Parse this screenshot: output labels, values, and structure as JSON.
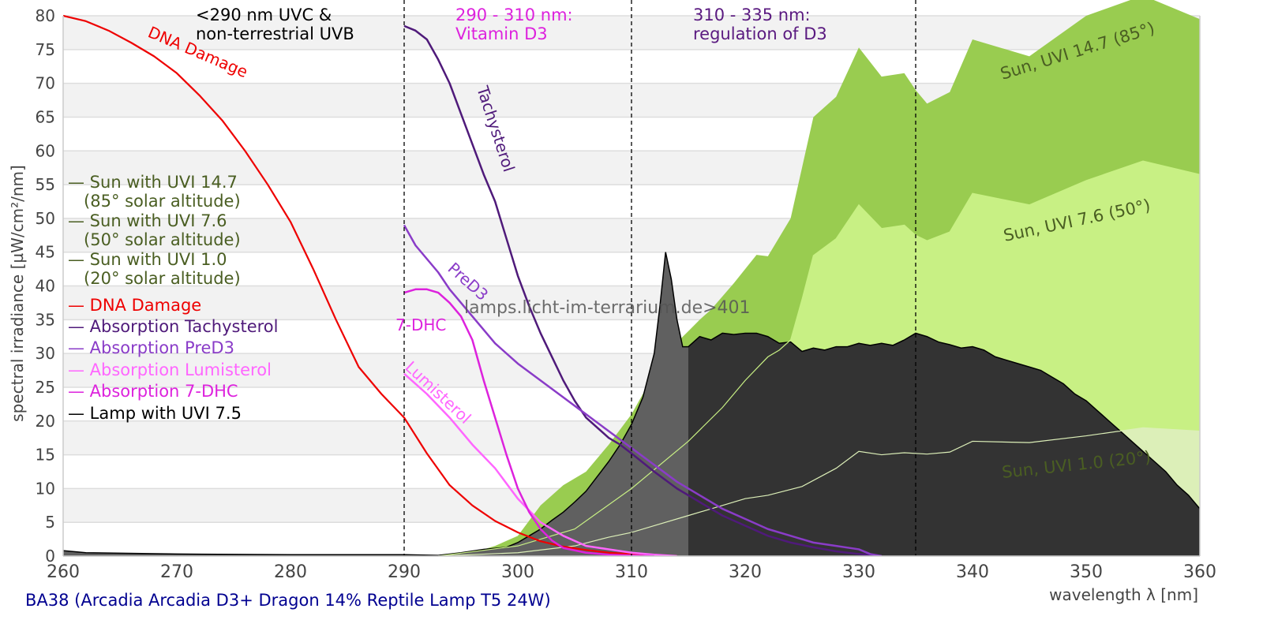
{
  "chart_data": {
    "type": "area",
    "title": "",
    "footer": "BA38 (Arcadia Arcadia D3+ Dragon 14% Reptile Lamp T5 24W)",
    "watermark": "lamps.licht-im-terrarium.de>401",
    "xlabel": "wavelength λ [nm]",
    "ylabel": "spectral irradiance [µW/cm²/nm]",
    "xlim": [
      260,
      360
    ],
    "ylim": [
      0,
      80
    ],
    "xticks": [
      260,
      270,
      280,
      290,
      300,
      310,
      320,
      330,
      340,
      350,
      360
    ],
    "yticks": [
      0,
      5,
      10,
      15,
      20,
      25,
      30,
      35,
      40,
      45,
      50,
      55,
      60,
      65,
      70,
      75,
      80
    ],
    "grid": "horizontal bands",
    "legend_position": "left-middle",
    "vlines": [
      290,
      310,
      335
    ],
    "region_annotations": [
      {
        "lines": [
          "<290 nm UVC &",
          "non-terrestrial UVB"
        ],
        "color": "#000000"
      },
      {
        "lines": [
          "290 - 310 nm:",
          "Vitamin D3"
        ],
        "color": "#dd22dd"
      },
      {
        "lines": [
          "310 - 335 nm:",
          "regulation of D3"
        ],
        "color": "#5a1a80"
      }
    ],
    "legend": [
      {
        "lines": [
          "— Sun with UVI 14.7",
          "   (85° solar altitude)"
        ],
        "color": "#4a5e22"
      },
      {
        "lines": [
          "— Sun with UVI 7.6",
          "   (50° solar altitude)"
        ],
        "color": "#4a5e22"
      },
      {
        "lines": [
          "— Sun with UVI 1.0",
          "   (20° solar altitude)"
        ],
        "color": "#4a5e22"
      },
      {
        "lines": [
          "— DNA Damage"
        ],
        "color": "#ee0000"
      },
      {
        "lines": [
          "— Absorption Tachysterol"
        ],
        "color": "#4f1a7a"
      },
      {
        "lines": [
          "— Absorption PreD3"
        ],
        "color": "#8a3cc8"
      },
      {
        "lines": [
          "— Absorption Lumisterol"
        ],
        "color": "#ff66ff"
      },
      {
        "lines": [
          "— Absorption 7-DHC"
        ],
        "color": "#dd22dd"
      },
      {
        "lines": [
          "— Lamp with UVI 7.5"
        ],
        "color": "#000000"
      }
    ],
    "series": [
      {
        "name": "Sun with UVI 14.7 (85° solar altitude)",
        "label": "Sun, UVI 14.7 (85°)",
        "kind": "area",
        "color": "#99cc50",
        "x": [
          293,
          296,
          298,
          300,
          302,
          304,
          306,
          308,
          310,
          312,
          313,
          315,
          316,
          317,
          319,
          321,
          322,
          324,
          326,
          328,
          330,
          332,
          334,
          335,
          336,
          338,
          340,
          345,
          350,
          355,
          360
        ],
        "y": [
          0,
          0.5,
          1.5,
          3,
          7.5,
          10.5,
          12.5,
          16.5,
          21,
          27,
          30,
          33.3,
          35,
          36.5,
          40.4,
          44.6,
          44.4,
          50,
          65,
          68,
          75.3,
          71,
          71.5,
          69,
          67,
          68.7,
          76.5,
          74,
          80,
          83,
          79.5
        ]
      },
      {
        "name": "Sun with UVI 7.6 (50° solar altitude)",
        "label": "Sun, UVI 7.6 (50°)",
        "kind": "area",
        "color": "#c8f084",
        "x": [
          293,
          300,
          305,
          310,
          315,
          318,
          320,
          322,
          323,
          324,
          325,
          326,
          328,
          330,
          332,
          334,
          335,
          336,
          338,
          340,
          345,
          350,
          355,
          360
        ],
        "y": [
          0,
          1.5,
          4,
          10,
          17,
          22,
          26,
          29.5,
          30.5,
          32,
          38,
          44.5,
          47,
          52,
          48.5,
          49,
          47.5,
          46.7,
          48,
          53.7,
          52,
          55.6,
          58.5,
          56.5
        ]
      },
      {
        "name": "Sun with UVI 1.0 (20° solar altitude)",
        "label": "Sun, UVI 1.0 (20°)",
        "kind": "area",
        "color": "#dcefb8",
        "x": [
          293,
          300,
          305,
          308,
          310,
          312,
          315,
          318,
          320,
          322,
          325,
          328,
          330,
          332,
          334,
          336,
          338,
          340,
          345,
          350,
          355,
          360
        ],
        "y": [
          0,
          0.5,
          1.5,
          2.8,
          3.5,
          4.5,
          6,
          7.5,
          8.5,
          9,
          10.3,
          13,
          15.5,
          15,
          15.3,
          15.1,
          15.4,
          17,
          16.8,
          17.8,
          19,
          18.5
        ]
      },
      {
        "name": "Lamp with UVI 7.5",
        "kind": "area",
        "color": "#333333",
        "color_uvb": "#606060",
        "x": [
          260,
          262,
          270,
          280,
          290,
          293,
          295,
          297,
          299,
          300,
          301,
          302,
          303,
          304,
          305,
          306,
          307,
          308,
          309,
          310,
          311,
          312,
          312.5,
          313,
          313.5,
          314,
          314.5,
          315,
          316,
          317,
          318,
          319,
          320,
          321,
          322,
          323,
          324,
          325,
          326,
          327,
          328,
          329,
          330,
          331,
          332,
          333,
          334,
          335,
          336,
          337,
          338,
          339,
          340,
          341,
          342,
          343,
          344,
          345,
          346,
          347,
          348,
          349,
          350,
          351,
          352,
          353,
          354,
          355,
          356,
          357,
          358,
          359,
          360
        ],
        "y": [
          0.8,
          0.5,
          0.3,
          0.2,
          0.2,
          0.1,
          0.5,
          1,
          1.3,
          2,
          3,
          4,
          5.3,
          6.5,
          8,
          9.6,
          11.8,
          14,
          16.5,
          19.5,
          23.5,
          30,
          37,
          45,
          41,
          35,
          31,
          31,
          32.5,
          32,
          33,
          32.8,
          33,
          33,
          32.5,
          31.5,
          31.7,
          30.3,
          30.8,
          30.5,
          31,
          31,
          31.5,
          31.2,
          31.5,
          31.2,
          32,
          33,
          32.5,
          31.7,
          31.3,
          30.8,
          31,
          30.5,
          29.5,
          29,
          28.5,
          28,
          27.5,
          26.5,
          25.5,
          24,
          23,
          21.5,
          20,
          18.5,
          17,
          15.5,
          14,
          12.5,
          10.5,
          9,
          7
        ]
      },
      {
        "name": "DNA Damage",
        "label": "DNA Damage",
        "kind": "line",
        "color": "#ee0000",
        "x": [
          260,
          262,
          264,
          266,
          268,
          270,
          272,
          274,
          276,
          278,
          280,
          282,
          284,
          286,
          288,
          290,
          292,
          294,
          296,
          298,
          300,
          302,
          304,
          306,
          308,
          310,
          312,
          314
        ],
        "y": [
          80,
          79.2,
          77.8,
          76,
          74,
          71.5,
          68.2,
          64.5,
          60,
          55,
          49.5,
          42.5,
          35,
          28,
          24,
          20.5,
          15.2,
          10.5,
          7.5,
          5.2,
          3.5,
          2.2,
          1.4,
          0.9,
          0.5,
          0.3,
          0.1,
          0
        ]
      },
      {
        "name": "Absorption Tachysterol",
        "label": "Tachysterol",
        "kind": "line",
        "color": "#4f1a7a",
        "x": [
          290,
          291,
          292,
          293,
          294,
          295,
          296,
          297,
          298,
          299,
          300,
          301,
          302,
          303,
          304,
          305,
          306,
          307,
          308,
          309,
          310,
          312,
          314,
          316,
          318,
          320,
          322,
          324,
          326,
          328,
          330,
          332
        ],
        "y": [
          78.5,
          77.8,
          76.5,
          73.5,
          70,
          65.5,
          61,
          56.5,
          52.5,
          47,
          41.5,
          37,
          33,
          29.5,
          26,
          23,
          20.5,
          19,
          17.5,
          16.5,
          15.2,
          12.5,
          10,
          8,
          6,
          4.5,
          3,
          2,
          1.3,
          0.7,
          0.3,
          0
        ]
      },
      {
        "name": "Absorption PreD3",
        "label": "PreD3",
        "kind": "line",
        "color": "#8a3cc8",
        "x": [
          290,
          291,
          292,
          293,
          294,
          295,
          296,
          298,
          300,
          302,
          304,
          306,
          308,
          310,
          312,
          314,
          316,
          318,
          320,
          322,
          324,
          326,
          328,
          330,
          331,
          332
        ],
        "y": [
          49,
          46,
          44,
          42,
          39.5,
          37.5,
          35.5,
          31.5,
          28.5,
          26,
          23.5,
          21,
          18.5,
          16,
          13.5,
          11,
          9,
          7,
          5.5,
          4,
          3,
          2,
          1.5,
          1,
          0.3,
          0
        ]
      },
      {
        "name": "Absorption Lumisterol",
        "label": "Lumisterol",
        "kind": "line",
        "color": "#ff66ff",
        "x": [
          290,
          292,
          294,
          296,
          298,
          300,
          302,
          304,
          306,
          308,
          310,
          312,
          314
        ],
        "y": [
          27,
          24,
          20.5,
          16.5,
          13,
          8.5,
          5,
          3,
          1.5,
          1,
          0.5,
          0.2,
          0
        ]
      },
      {
        "name": "Absorption 7-DHC",
        "label": "7-DHC",
        "kind": "line",
        "color": "#dd22dd",
        "x": [
          290,
          291,
          292,
          293,
          294,
          295,
          296,
          297,
          298,
          299,
          300,
          301,
          302,
          303,
          304,
          306,
          308,
          310,
          312
        ],
        "y": [
          39,
          39.5,
          39.5,
          39,
          37.5,
          35.5,
          32,
          26,
          20.5,
          15,
          10,
          6.5,
          4,
          2.3,
          1.2,
          0.5,
          0.2,
          0.1,
          0
        ]
      }
    ]
  }
}
